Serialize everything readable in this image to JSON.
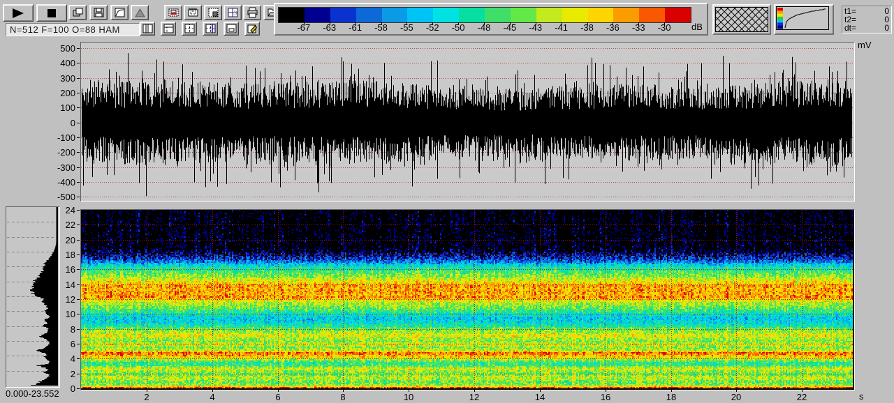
{
  "toolbar": {
    "transport_buttons": [
      {
        "name": "play-button",
        "icon": "play-icon"
      },
      {
        "name": "stop-button",
        "icon": "stop-icon"
      }
    ],
    "buttons_row1": [
      {
        "name": "copy-button",
        "icon": "copy-window-icon"
      },
      {
        "name": "save-button",
        "icon": "floppy-disk-icon"
      },
      {
        "name": "transfer-curve-button",
        "icon": "transfer-curve-icon"
      },
      {
        "name": "window-function-button",
        "icon": "window-function-icon"
      },
      {
        "name": "view-waveform-button",
        "icon": "waveform-box-icon"
      },
      {
        "name": "view-spectrogram-button",
        "icon": "spectrogram-box-icon"
      },
      {
        "name": "view-hatch-button",
        "icon": "hatched-box-icon"
      },
      {
        "name": "view-spectrum-button",
        "icon": "s-grid-icon"
      },
      {
        "name": "print-button",
        "icon": "printer-icon"
      },
      {
        "name": "open-button",
        "icon": "open-folder-icon"
      }
    ],
    "buttons_row2": [
      {
        "name": "layout-left-panel-button",
        "icon": "layout-left-strip-icon"
      },
      {
        "name": "layout-top-bar-button",
        "icon": "layout-top-bar-icon"
      },
      {
        "name": "layout-quad-button",
        "icon": "layout-quad-icon"
      },
      {
        "name": "layout-quad-cursor-button",
        "icon": "layout-quad-cursor-icon"
      },
      {
        "name": "layout-inner-box-button",
        "icon": "layout-inner-box-icon"
      },
      {
        "name": "edit-button",
        "icon": "edit-pencil-icon"
      }
    ],
    "status_text": "N=512 F=100 O=88 HAM",
    "readouts": [
      {
        "label": "t1=",
        "value": "0"
      },
      {
        "label": "t2=",
        "value": "0"
      },
      {
        "label": "dt=",
        "value": "0"
      }
    ]
  },
  "colorbar": {
    "unit_label": "dB",
    "tick_labels": [
      "-67",
      "-63",
      "-61",
      "-58",
      "-55",
      "-52",
      "-50",
      "-48",
      "-45",
      "-43",
      "-41",
      "-38",
      "-36",
      "-33",
      "-30"
    ],
    "segment_colors": [
      "#000000",
      "#000090",
      "#0932cf",
      "#0d68d8",
      "#0b9ae6",
      "#00c3f5",
      "#00e2e2",
      "#06dfa1",
      "#3ede69",
      "#63e947",
      "#c3ea1c",
      "#e9ea00",
      "#fcd503",
      "#fb9d00",
      "#f95700",
      "#d90000"
    ]
  },
  "indicators": {
    "hatch_pattern": "crosshatch",
    "gradient_colors": [
      "#d90000",
      "#fb9d00",
      "#e9ea00",
      "#38c838",
      "#00c8f0",
      "#0932cf",
      "#000090"
    ]
  },
  "waveform_axis": {
    "unit_label": "mV",
    "tick_labels": [
      "500",
      "400",
      "300",
      "200",
      "100",
      "0",
      "-100",
      "-200",
      "-300",
      "-400",
      "-500"
    ],
    "tick_values": [
      500,
      400,
      300,
      200,
      100,
      0,
      -100,
      -200,
      -300,
      -400,
      -500
    ]
  },
  "spectrogram_axis": {
    "unit_label": "s",
    "y_tick_labels": [
      "24",
      "22",
      "20",
      "18",
      "16",
      "14",
      "12",
      "10",
      "8",
      "6",
      "4",
      "2",
      "0"
    ],
    "y_tick_values": [
      24,
      22,
      20,
      18,
      16,
      14,
      12,
      10,
      8,
      6,
      4,
      2,
      0
    ],
    "x_tick_labels": [
      "2",
      "4",
      "6",
      "8",
      "10",
      "12",
      "14",
      "16",
      "18",
      "20",
      "22"
    ],
    "x_tick_values": [
      2,
      4,
      6,
      8,
      10,
      12,
      14,
      16,
      18,
      20,
      22
    ]
  },
  "profile_panel": {
    "range_label": "0.000-23.552"
  },
  "chart_data": [
    {
      "type": "line",
      "name": "waveform",
      "title": "",
      "xlabel": "",
      "ylabel": "mV",
      "xlim": [
        0,
        23.552
      ],
      "ylim": [
        -500,
        500
      ],
      "grid": "dotted-red-horizontal-every-100mV",
      "description": "dense broadband noise, solid body about +/-250 mV with spikes to +/-500 mV",
      "body_amplitude_mv": 250,
      "peak_amplitude_mv": 500
    },
    {
      "type": "heatmap",
      "name": "spectrogram",
      "xlabel": "s",
      "ylabel": "",
      "xlim": [
        0,
        23.552
      ],
      "ylim": [
        0,
        24
      ],
      "grid": "dotted-red-every-2-units",
      "colormap_range_db": [
        -67,
        -30
      ],
      "noise_db": 8.5,
      "band_profile_db": [
        [
          0,
          -31
        ],
        [
          0.15,
          -35
        ],
        [
          0.4,
          -44
        ],
        [
          0.8,
          -46
        ],
        [
          1.1,
          -44
        ],
        [
          1.5,
          -42
        ],
        [
          1.9,
          -46
        ],
        [
          2.3,
          -44
        ],
        [
          2.6,
          -40
        ],
        [
          3.0,
          -47
        ],
        [
          3.4,
          -49
        ],
        [
          3.8,
          -44
        ],
        [
          4.1,
          -40
        ],
        [
          4.5,
          -36
        ],
        [
          4.8,
          -34
        ],
        [
          5.1,
          -42
        ],
        [
          5.5,
          -45
        ],
        [
          5.9,
          -40
        ],
        [
          6.3,
          -45
        ],
        [
          6.7,
          -43
        ],
        [
          7.1,
          -40
        ],
        [
          7.5,
          -43
        ],
        [
          7.9,
          -45
        ],
        [
          8.3,
          -49
        ],
        [
          8.8,
          -52
        ],
        [
          9.4,
          -54
        ],
        [
          9.9,
          -51
        ],
        [
          10.4,
          -48
        ],
        [
          10.9,
          -45
        ],
        [
          11.4,
          -43
        ],
        [
          11.9,
          -40
        ],
        [
          12.2,
          -35
        ],
        [
          12.6,
          -37
        ],
        [
          13.0,
          -36
        ],
        [
          13.4,
          -37
        ],
        [
          13.8,
          -36
        ],
        [
          14.2,
          -39
        ],
        [
          14.6,
          -41
        ],
        [
          15.0,
          -44
        ],
        [
          15.5,
          -46
        ],
        [
          16.0,
          -49
        ],
        [
          16.5,
          -52
        ],
        [
          17.0,
          -58
        ],
        [
          17.4,
          -61
        ],
        [
          17.8,
          -63
        ],
        [
          18.2,
          -65
        ],
        [
          18.6,
          -66.5
        ],
        [
          19.0,
          -67.5
        ],
        [
          24,
          -68
        ]
      ]
    },
    {
      "type": "area",
      "name": "average-spectrum-profile",
      "orientation": "vertical-axis-left-filled-from-right",
      "ylim": [
        0,
        24
      ],
      "range_label": "0.000-23.552",
      "width_profile": [
        [
          0,
          0.55
        ],
        [
          0.1,
          0.52
        ],
        [
          0.3,
          0.44
        ],
        [
          0.6,
          0.36
        ],
        [
          0.9,
          0.28
        ],
        [
          1.2,
          0.2
        ],
        [
          1.5,
          0.18
        ],
        [
          1.8,
          0.32
        ],
        [
          2.1,
          0.2
        ],
        [
          2.4,
          0.28
        ],
        [
          2.7,
          0.46
        ],
        [
          2.9,
          0.22
        ],
        [
          3.2,
          0.18
        ],
        [
          3.5,
          0.22
        ],
        [
          3.8,
          0.3
        ],
        [
          4.1,
          0.22
        ],
        [
          4.4,
          0.28
        ],
        [
          4.7,
          0.5
        ],
        [
          4.9,
          0.33
        ],
        [
          5.2,
          0.24
        ],
        [
          5.6,
          0.18
        ],
        [
          6.0,
          0.2
        ],
        [
          6.3,
          0.28
        ],
        [
          6.6,
          0.4
        ],
        [
          7.0,
          0.26
        ],
        [
          7.3,
          0.2
        ],
        [
          7.7,
          0.22
        ],
        [
          8.0,
          0.34
        ],
        [
          8.4,
          0.22
        ],
        [
          8.8,
          0.3
        ],
        [
          9.2,
          0.18
        ],
        [
          9.6,
          0.22
        ],
        [
          10.0,
          0.27
        ],
        [
          10.4,
          0.22
        ],
        [
          10.8,
          0.25
        ],
        [
          11.2,
          0.33
        ],
        [
          11.6,
          0.28
        ],
        [
          12.0,
          0.44
        ],
        [
          12.4,
          0.52
        ],
        [
          12.8,
          0.57
        ],
        [
          13.0,
          0.53
        ],
        [
          13.5,
          0.55
        ],
        [
          14.0,
          0.5
        ],
        [
          14.5,
          0.42
        ],
        [
          15.0,
          0.36
        ],
        [
          15.4,
          0.33
        ],
        [
          16.0,
          0.3
        ],
        [
          16.4,
          0.28
        ],
        [
          17.0,
          0.2
        ],
        [
          17.6,
          0.13
        ],
        [
          18.3,
          0.07
        ],
        [
          19.0,
          0.04
        ],
        [
          20,
          0.03
        ],
        [
          24,
          0.03
        ]
      ]
    }
  ]
}
